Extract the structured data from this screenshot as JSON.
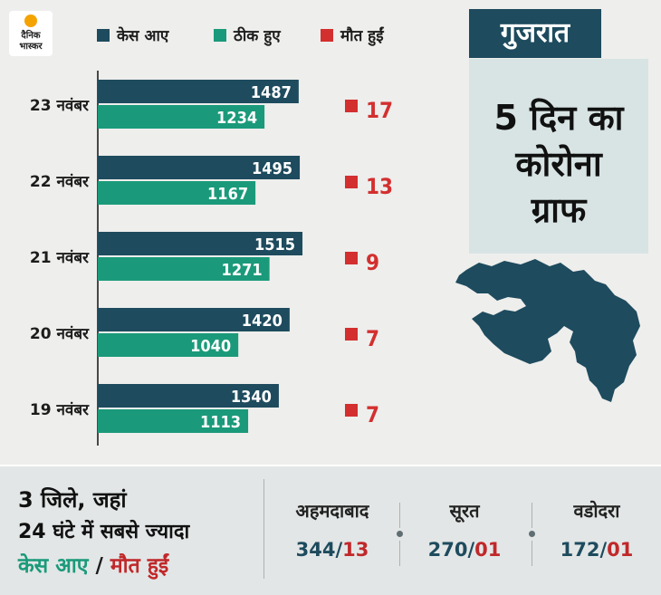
{
  "logo": {
    "line1": "दैनिक",
    "line2": "भास्कर"
  },
  "chart_data": {
    "type": "bar",
    "categories": [
      "23 नवंबर",
      "22 नवंबर",
      "21 नवंबर",
      "20 नवंबर",
      "19 नवंबर"
    ],
    "series": [
      {
        "name": "केस आए",
        "values": [
          1487,
          1495,
          1515,
          1420,
          1340
        ],
        "color": "#1e4b5e"
      },
      {
        "name": "ठीक हुए",
        "values": [
          1234,
          1167,
          1271,
          1040,
          1113
        ],
        "color": "#1a9a7a"
      },
      {
        "name": "मौत हुईं",
        "values": [
          17,
          13,
          9,
          7,
          7
        ],
        "color": "#d32f2f"
      }
    ],
    "grid": false
  },
  "title": {
    "state": "गुजरात",
    "line1": "5 दिन का",
    "line2": "कोरोना",
    "line3": "ग्राफ"
  },
  "note": {
    "line1": "3 जिले, जहां",
    "line2": "24 घंटे में सबसे ज्यादा",
    "cases_label": "केस आए",
    "separator": "/",
    "deaths_label": "मौत हुईं"
  },
  "cities": [
    {
      "name": "अहमदाबाद",
      "cases": "344",
      "deaths": "13"
    },
    {
      "name": "सूरत",
      "cases": "270",
      "deaths": "01"
    },
    {
      "name": "वडोदरा",
      "cases": "172",
      "deaths": "01"
    }
  ],
  "colors": {
    "background": "#eeeeec",
    "cases": "#1e4b5e",
    "recovered": "#1a9a7a",
    "deaths": "#d32f2f",
    "panel": "#d8e4e4",
    "bottom_bar": "#e3e6e6"
  }
}
